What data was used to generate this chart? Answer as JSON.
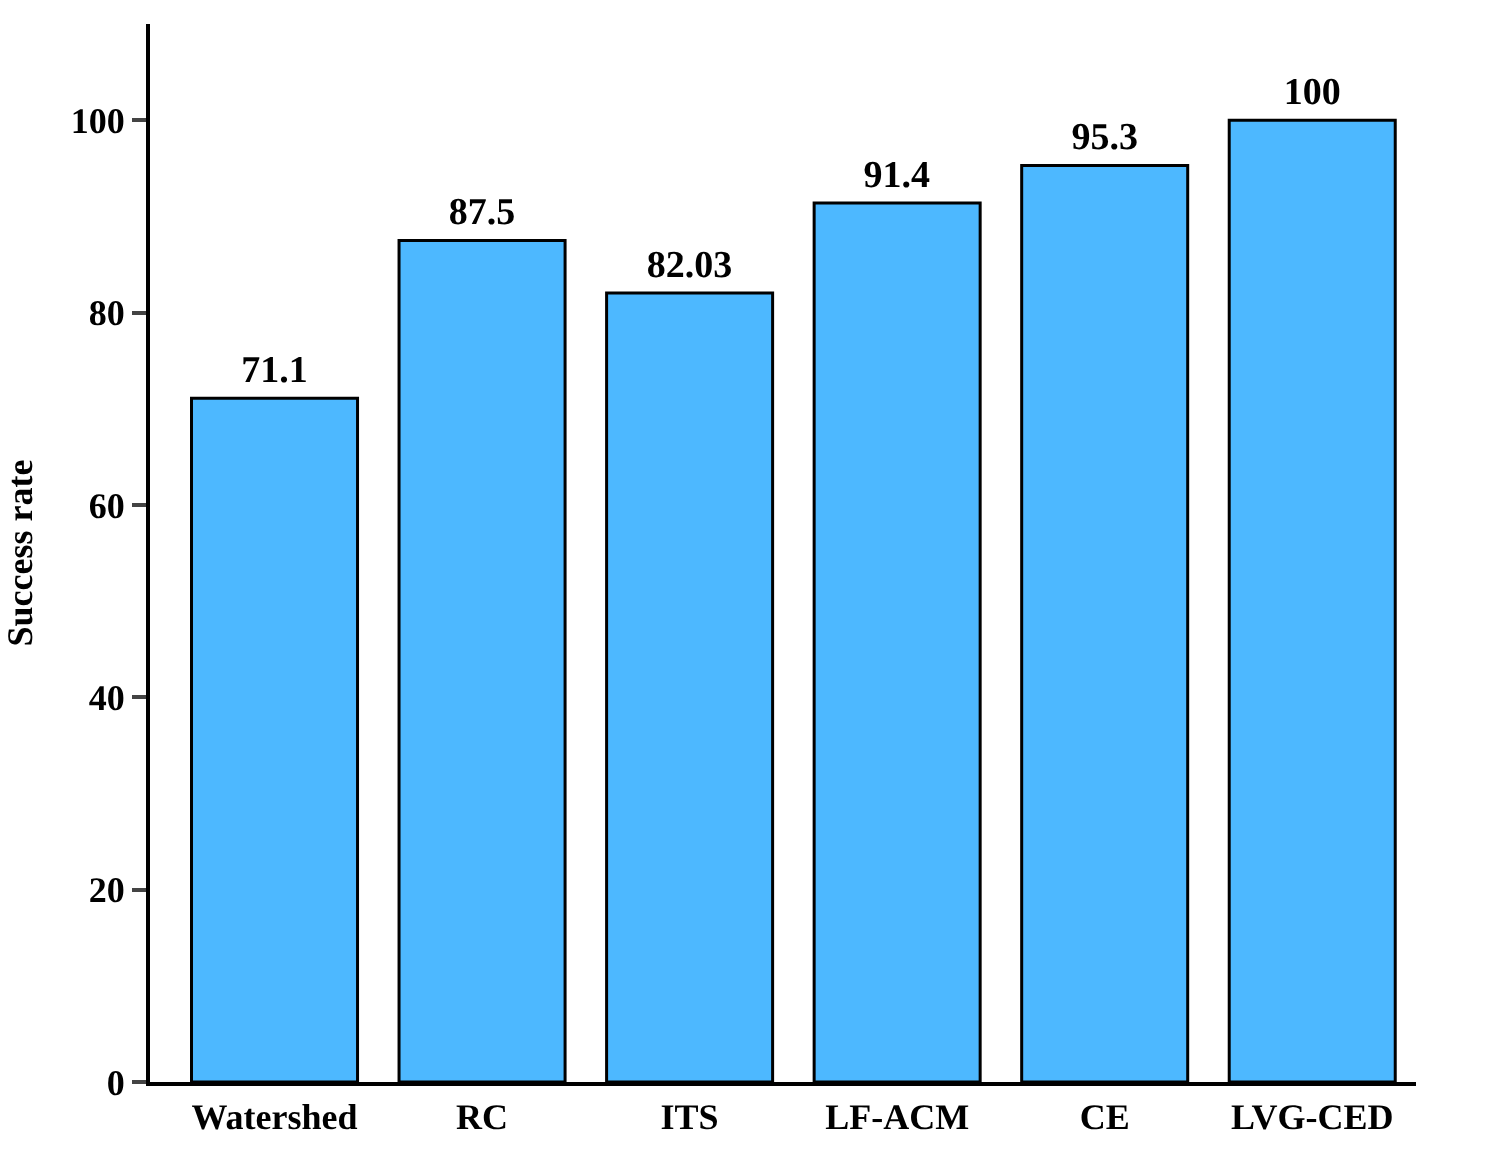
{
  "chart_data": {
    "type": "bar",
    "ylabel": "Success rate",
    "categories": [
      "Watershed",
      "RC",
      "ITS",
      "LF-ACM",
      "CE",
      "LVG-CED"
    ],
    "values": [
      71.1,
      87.5,
      82.03,
      91.4,
      95.3,
      100
    ],
    "color": "#4db8ff",
    "ylim": [
      0,
      110
    ],
    "yticks": [
      0,
      20,
      40,
      60,
      80,
      100
    ],
    "data_labels": true,
    "grid": false
  }
}
